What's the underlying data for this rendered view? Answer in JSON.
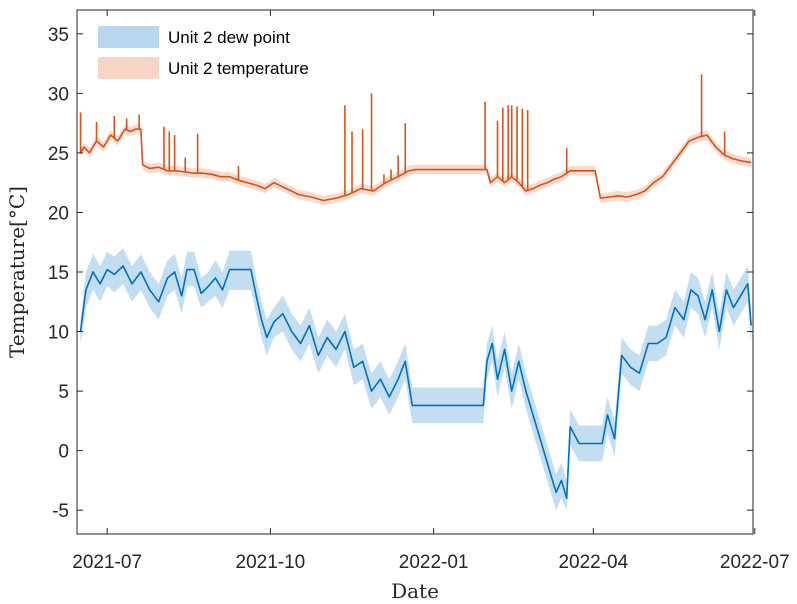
{
  "chart_data": {
    "type": "line",
    "xlabel": "Date",
    "ylabel": "Temperature[°C]",
    "xlim": [
      "2021-06-14",
      "2022-06-30"
    ],
    "ylim": [
      -7,
      37
    ],
    "x_ticks": [
      "2021-07-01",
      "2021-10-01",
      "2022-01-01",
      "2022-04-01",
      "2022-07-01"
    ],
    "x_tick_labels": [
      "2021-07",
      "2021-10",
      "2022-01",
      "2022-04",
      "2022-07"
    ],
    "y_ticks": [
      -5,
      0,
      5,
      10,
      15,
      20,
      25,
      30,
      35
    ],
    "y_tick_labels": [
      "-5",
      "0",
      "5",
      "10",
      "15",
      "20",
      "25",
      "30",
      "35"
    ],
    "legend_position": "top-left",
    "grid": false,
    "series": [
      {
        "name": "Unit 2 dew point",
        "color": "#0072BD",
        "band_color": "#B9D8EF",
        "x": [
          "2021-06-16",
          "2021-06-19",
          "2021-06-23",
          "2021-06-27",
          "2021-07-01",
          "2021-07-05",
          "2021-07-10",
          "2021-07-15",
          "2021-07-20",
          "2021-07-25",
          "2021-07-30",
          "2021-08-04",
          "2021-08-08",
          "2021-08-12",
          "2021-08-15",
          "2021-08-19",
          "2021-08-23",
          "2021-08-27",
          "2021-08-31",
          "2021-09-04",
          "2021-09-08",
          "2021-09-12",
          "2021-09-16",
          "2021-09-20",
          "2021-09-23",
          "2021-09-26",
          "2021-09-29",
          "2021-10-03",
          "2021-10-08",
          "2021-10-13",
          "2021-10-18",
          "2021-10-23",
          "2021-10-28",
          "2021-11-02",
          "2021-11-07",
          "2021-11-12",
          "2021-11-17",
          "2021-11-22",
          "2021-11-27",
          "2021-12-02",
          "2021-12-07",
          "2021-12-12",
          "2021-12-16",
          "2021-12-20",
          "2022-01-05",
          "2022-01-20",
          "2022-01-29",
          "2022-01-31",
          "2022-02-03",
          "2022-02-06",
          "2022-02-10",
          "2022-02-14",
          "2022-02-18",
          "2022-02-22",
          "2022-02-26",
          "2022-03-02",
          "2022-03-05",
          "2022-03-08",
          "2022-03-11",
          "2022-03-14",
          "2022-03-17",
          "2022-03-19",
          "2022-03-24",
          "2022-04-02",
          "2022-04-06",
          "2022-04-09",
          "2022-04-13",
          "2022-04-17",
          "2022-04-22",
          "2022-04-27",
          "2022-05-02",
          "2022-05-07",
          "2022-05-12",
          "2022-05-17",
          "2022-05-22",
          "2022-05-26",
          "2022-05-30",
          "2022-06-03",
          "2022-06-07",
          "2022-06-11",
          "2022-06-15",
          "2022-06-19",
          "2022-06-23",
          "2022-06-27",
          "2022-06-29"
        ],
        "values": [
          10,
          13.5,
          15,
          14,
          15.2,
          14.8,
          15.5,
          14,
          15,
          13.5,
          12.5,
          14.5,
          15,
          13,
          15.2,
          15.2,
          13.2,
          13.8,
          14.5,
          13.5,
          15.2,
          15.2,
          15.2,
          15.2,
          13,
          11,
          9.5,
          10.8,
          11.5,
          10,
          9,
          10.5,
          8,
          9.5,
          8.5,
          10,
          7,
          7.5,
          5,
          6,
          4.5,
          6,
          7.5,
          3.8,
          3.8,
          3.8,
          3.8,
          7.5,
          9,
          6,
          8.5,
          5,
          7.5,
          5,
          3,
          1,
          -0.5,
          -2,
          -3.5,
          -2.5,
          -4,
          2,
          0.6,
          0.6,
          0.6,
          3,
          1,
          8,
          7,
          6.5,
          9,
          9,
          9.5,
          12,
          11,
          13.5,
          13,
          11,
          13.5,
          10,
          13.5,
          12,
          13,
          14,
          10.5
        ],
        "band_low": [
          9,
          12,
          13.5,
          12.5,
          13.8,
          13.3,
          14,
          12.5,
          13.5,
          12,
          11,
          13,
          13.5,
          11.5,
          13.8,
          13.8,
          12,
          12.5,
          13,
          12,
          13.5,
          13.5,
          13.5,
          13.5,
          11.5,
          9.5,
          8,
          9.5,
          10,
          8.5,
          7.5,
          9,
          6.5,
          8,
          7,
          8.5,
          5.5,
          6,
          3.5,
          4.5,
          3,
          4.5,
          6,
          2.3,
          2.3,
          2.3,
          2.3,
          6,
          7.5,
          4.5,
          7,
          3.5,
          6,
          3.5,
          1.5,
          -0.5,
          -2,
          -3.5,
          -5,
          -4,
          -5,
          0.5,
          -0.9,
          -0.9,
          -0.9,
          1.5,
          -0.5,
          6.5,
          5.5,
          5,
          7.5,
          7.5,
          8,
          10.5,
          9.5,
          12,
          11.5,
          9.5,
          12,
          8.5,
          12,
          10.5,
          11.5,
          12.5,
          9
        ],
        "band_high": [
          11,
          15,
          16.5,
          15.5,
          16.7,
          16.3,
          17,
          15.5,
          16.5,
          15,
          14,
          16,
          16.5,
          14.5,
          16.7,
          16.7,
          14.5,
          15,
          16,
          15,
          16.8,
          16.8,
          16.8,
          16.8,
          14.5,
          12.5,
          11,
          12,
          13,
          11.5,
          10.5,
          12,
          9.5,
          11,
          10,
          11.5,
          8.5,
          9,
          6.5,
          7.5,
          6,
          7.5,
          9,
          5.3,
          5.3,
          5.3,
          5.3,
          9,
          10.5,
          7.5,
          10,
          6.5,
          9,
          6.5,
          4.5,
          2.5,
          1,
          -0.5,
          -2,
          -1,
          -2.5,
          3.5,
          2.1,
          2.1,
          2.1,
          4.5,
          2.5,
          9.5,
          8.5,
          8,
          10.5,
          10.5,
          11,
          13.5,
          12.5,
          15,
          14.5,
          12.5,
          15,
          11.5,
          15,
          13.5,
          14.5,
          15.5,
          12
        ]
      },
      {
        "name": "Unit 2 temperature",
        "color": "#D95319",
        "band_color": "#F6D5C7",
        "x": [
          "2021-06-16",
          "2021-06-18",
          "2021-06-21",
          "2021-06-25",
          "2021-06-29",
          "2021-07-03",
          "2021-07-07",
          "2021-07-11",
          "2021-07-14",
          "2021-07-17",
          "2021-07-20",
          "2021-07-21",
          "2021-07-25",
          "2021-07-30",
          "2021-08-04",
          "2021-08-09",
          "2021-08-14",
          "2021-08-19",
          "2021-08-24",
          "2021-08-29",
          "2021-09-03",
          "2021-09-08",
          "2021-09-13",
          "2021-09-18",
          "2021-09-23",
          "2021-09-28",
          "2021-10-03",
          "2021-10-10",
          "2021-10-17",
          "2021-10-24",
          "2021-10-31",
          "2021-11-07",
          "2021-11-14",
          "2021-11-21",
          "2021-11-28",
          "2021-12-05",
          "2021-12-12",
          "2021-12-18",
          "2021-12-22",
          "2022-01-08",
          "2022-01-24",
          "2022-01-31",
          "2022-02-02",
          "2022-02-06",
          "2022-02-10",
          "2022-02-14",
          "2022-02-18",
          "2022-02-22",
          "2022-02-26",
          "2022-03-02",
          "2022-03-06",
          "2022-03-10",
          "2022-03-14",
          "2022-03-17",
          "2022-03-19",
          "2022-03-27",
          "2022-04-02",
          "2022-04-05",
          "2022-04-10",
          "2022-04-15",
          "2022-04-20",
          "2022-04-25",
          "2022-04-30",
          "2022-05-05",
          "2022-05-10",
          "2022-05-15",
          "2022-05-20",
          "2022-05-25",
          "2022-05-30",
          "2022-06-04",
          "2022-06-09",
          "2022-06-14",
          "2022-06-19",
          "2022-06-24",
          "2022-06-29"
        ],
        "values": [
          25,
          25.5,
          25,
          26,
          25.5,
          26.5,
          26,
          27,
          26.8,
          27,
          27,
          24,
          23.7,
          23.8,
          23.5,
          23.5,
          23.4,
          23.3,
          23.3,
          23.2,
          23,
          23,
          22.7,
          22.5,
          22.3,
          22,
          22.5,
          22,
          21.5,
          21.3,
          21,
          21.2,
          21.5,
          22,
          21.8,
          22.5,
          23,
          23.5,
          23.6,
          23.6,
          23.6,
          23.6,
          22.5,
          23,
          22.5,
          23,
          22.5,
          21.8,
          22,
          22.3,
          22.5,
          22.8,
          23,
          23.3,
          23.5,
          23.5,
          23.5,
          21.2,
          21.3,
          21.4,
          21.3,
          21.5,
          21.8,
          22.5,
          23,
          24,
          25,
          26,
          26.3,
          26.5,
          25.5,
          24.8,
          24.5,
          24.3,
          24.2
        ],
        "band_low": [
          24.6,
          25.1,
          24.6,
          25.6,
          25.1,
          26.1,
          25.6,
          26.6,
          26.4,
          26.6,
          26.6,
          23.6,
          23.3,
          23.4,
          23.1,
          23.1,
          23,
          22.9,
          22.9,
          22.8,
          22.6,
          22.6,
          22.3,
          22.1,
          21.9,
          21.6,
          22.1,
          21.6,
          21.1,
          20.9,
          20.6,
          20.8,
          21.1,
          21.6,
          21.4,
          22.1,
          22.6,
          23.1,
          23.2,
          23.2,
          23.2,
          23.2,
          22.1,
          22.6,
          22.1,
          22.6,
          22.1,
          21.4,
          21.6,
          21.9,
          22.1,
          22.4,
          22.6,
          22.9,
          23.1,
          23.1,
          23.1,
          20.8,
          20.9,
          21,
          20.9,
          21.1,
          21.4,
          22.1,
          22.6,
          23.6,
          24.6,
          25.6,
          25.9,
          26.1,
          25.1,
          24.4,
          24.1,
          23.9,
          23.8
        ],
        "band_high": [
          25.4,
          25.9,
          25.4,
          26.4,
          25.9,
          26.9,
          26.4,
          27.4,
          27.2,
          27.4,
          27.4,
          24.4,
          24.1,
          24.2,
          23.9,
          23.9,
          23.8,
          23.7,
          23.7,
          23.6,
          23.4,
          23.4,
          23.1,
          22.9,
          22.7,
          22.4,
          22.9,
          22.4,
          21.9,
          21.7,
          21.4,
          21.6,
          21.9,
          22.4,
          22.2,
          22.9,
          23.4,
          23.9,
          24,
          24,
          24,
          24,
          22.9,
          23.4,
          22.9,
          23.4,
          22.9,
          22.2,
          22.4,
          22.7,
          22.9,
          23.2,
          23.4,
          23.7,
          23.9,
          23.9,
          23.9,
          21.6,
          21.7,
          21.8,
          21.7,
          21.9,
          22.2,
          22.9,
          23.4,
          24.4,
          25.4,
          26.4,
          26.7,
          26.9,
          25.9,
          25.2,
          24.9,
          24.7,
          24.6
        ],
        "spikes": [
          {
            "x": "2021-06-16",
            "y": 28.4
          },
          {
            "x": "2021-06-25",
            "y": 27.6
          },
          {
            "x": "2021-07-05",
            "y": 28.1
          },
          {
            "x": "2021-07-12",
            "y": 27.9
          },
          {
            "x": "2021-07-19",
            "y": 28.2
          },
          {
            "x": "2021-08-02",
            "y": 27.2
          },
          {
            "x": "2021-08-05",
            "y": 26.8
          },
          {
            "x": "2021-08-08",
            "y": 26.5
          },
          {
            "x": "2021-08-14",
            "y": 24.6
          },
          {
            "x": "2021-08-21",
            "y": 26.6
          },
          {
            "x": "2021-09-13",
            "y": 23.9
          },
          {
            "x": "2021-11-12",
            "y": 29.0
          },
          {
            "x": "2021-11-16",
            "y": 26.8
          },
          {
            "x": "2021-11-22",
            "y": 27.0
          },
          {
            "x": "2021-11-27",
            "y": 30.0
          },
          {
            "x": "2021-12-04",
            "y": 23.2
          },
          {
            "x": "2021-12-08",
            "y": 23.6
          },
          {
            "x": "2021-12-12",
            "y": 24.8
          },
          {
            "x": "2021-12-16",
            "y": 27.5
          },
          {
            "x": "2022-01-30",
            "y": 29.3
          },
          {
            "x": "2022-02-06",
            "y": 27.7
          },
          {
            "x": "2022-02-09",
            "y": 28.8
          },
          {
            "x": "2022-02-12",
            "y": 29.0
          },
          {
            "x": "2022-02-14",
            "y": 29.0
          },
          {
            "x": "2022-02-17",
            "y": 28.9
          },
          {
            "x": "2022-02-20",
            "y": 28.7
          },
          {
            "x": "2022-02-23",
            "y": 28.6
          },
          {
            "x": "2022-03-17",
            "y": 25.4
          },
          {
            "x": "2022-06-01",
            "y": 31.6
          },
          {
            "x": "2022-06-14",
            "y": 26.8
          }
        ]
      }
    ]
  }
}
